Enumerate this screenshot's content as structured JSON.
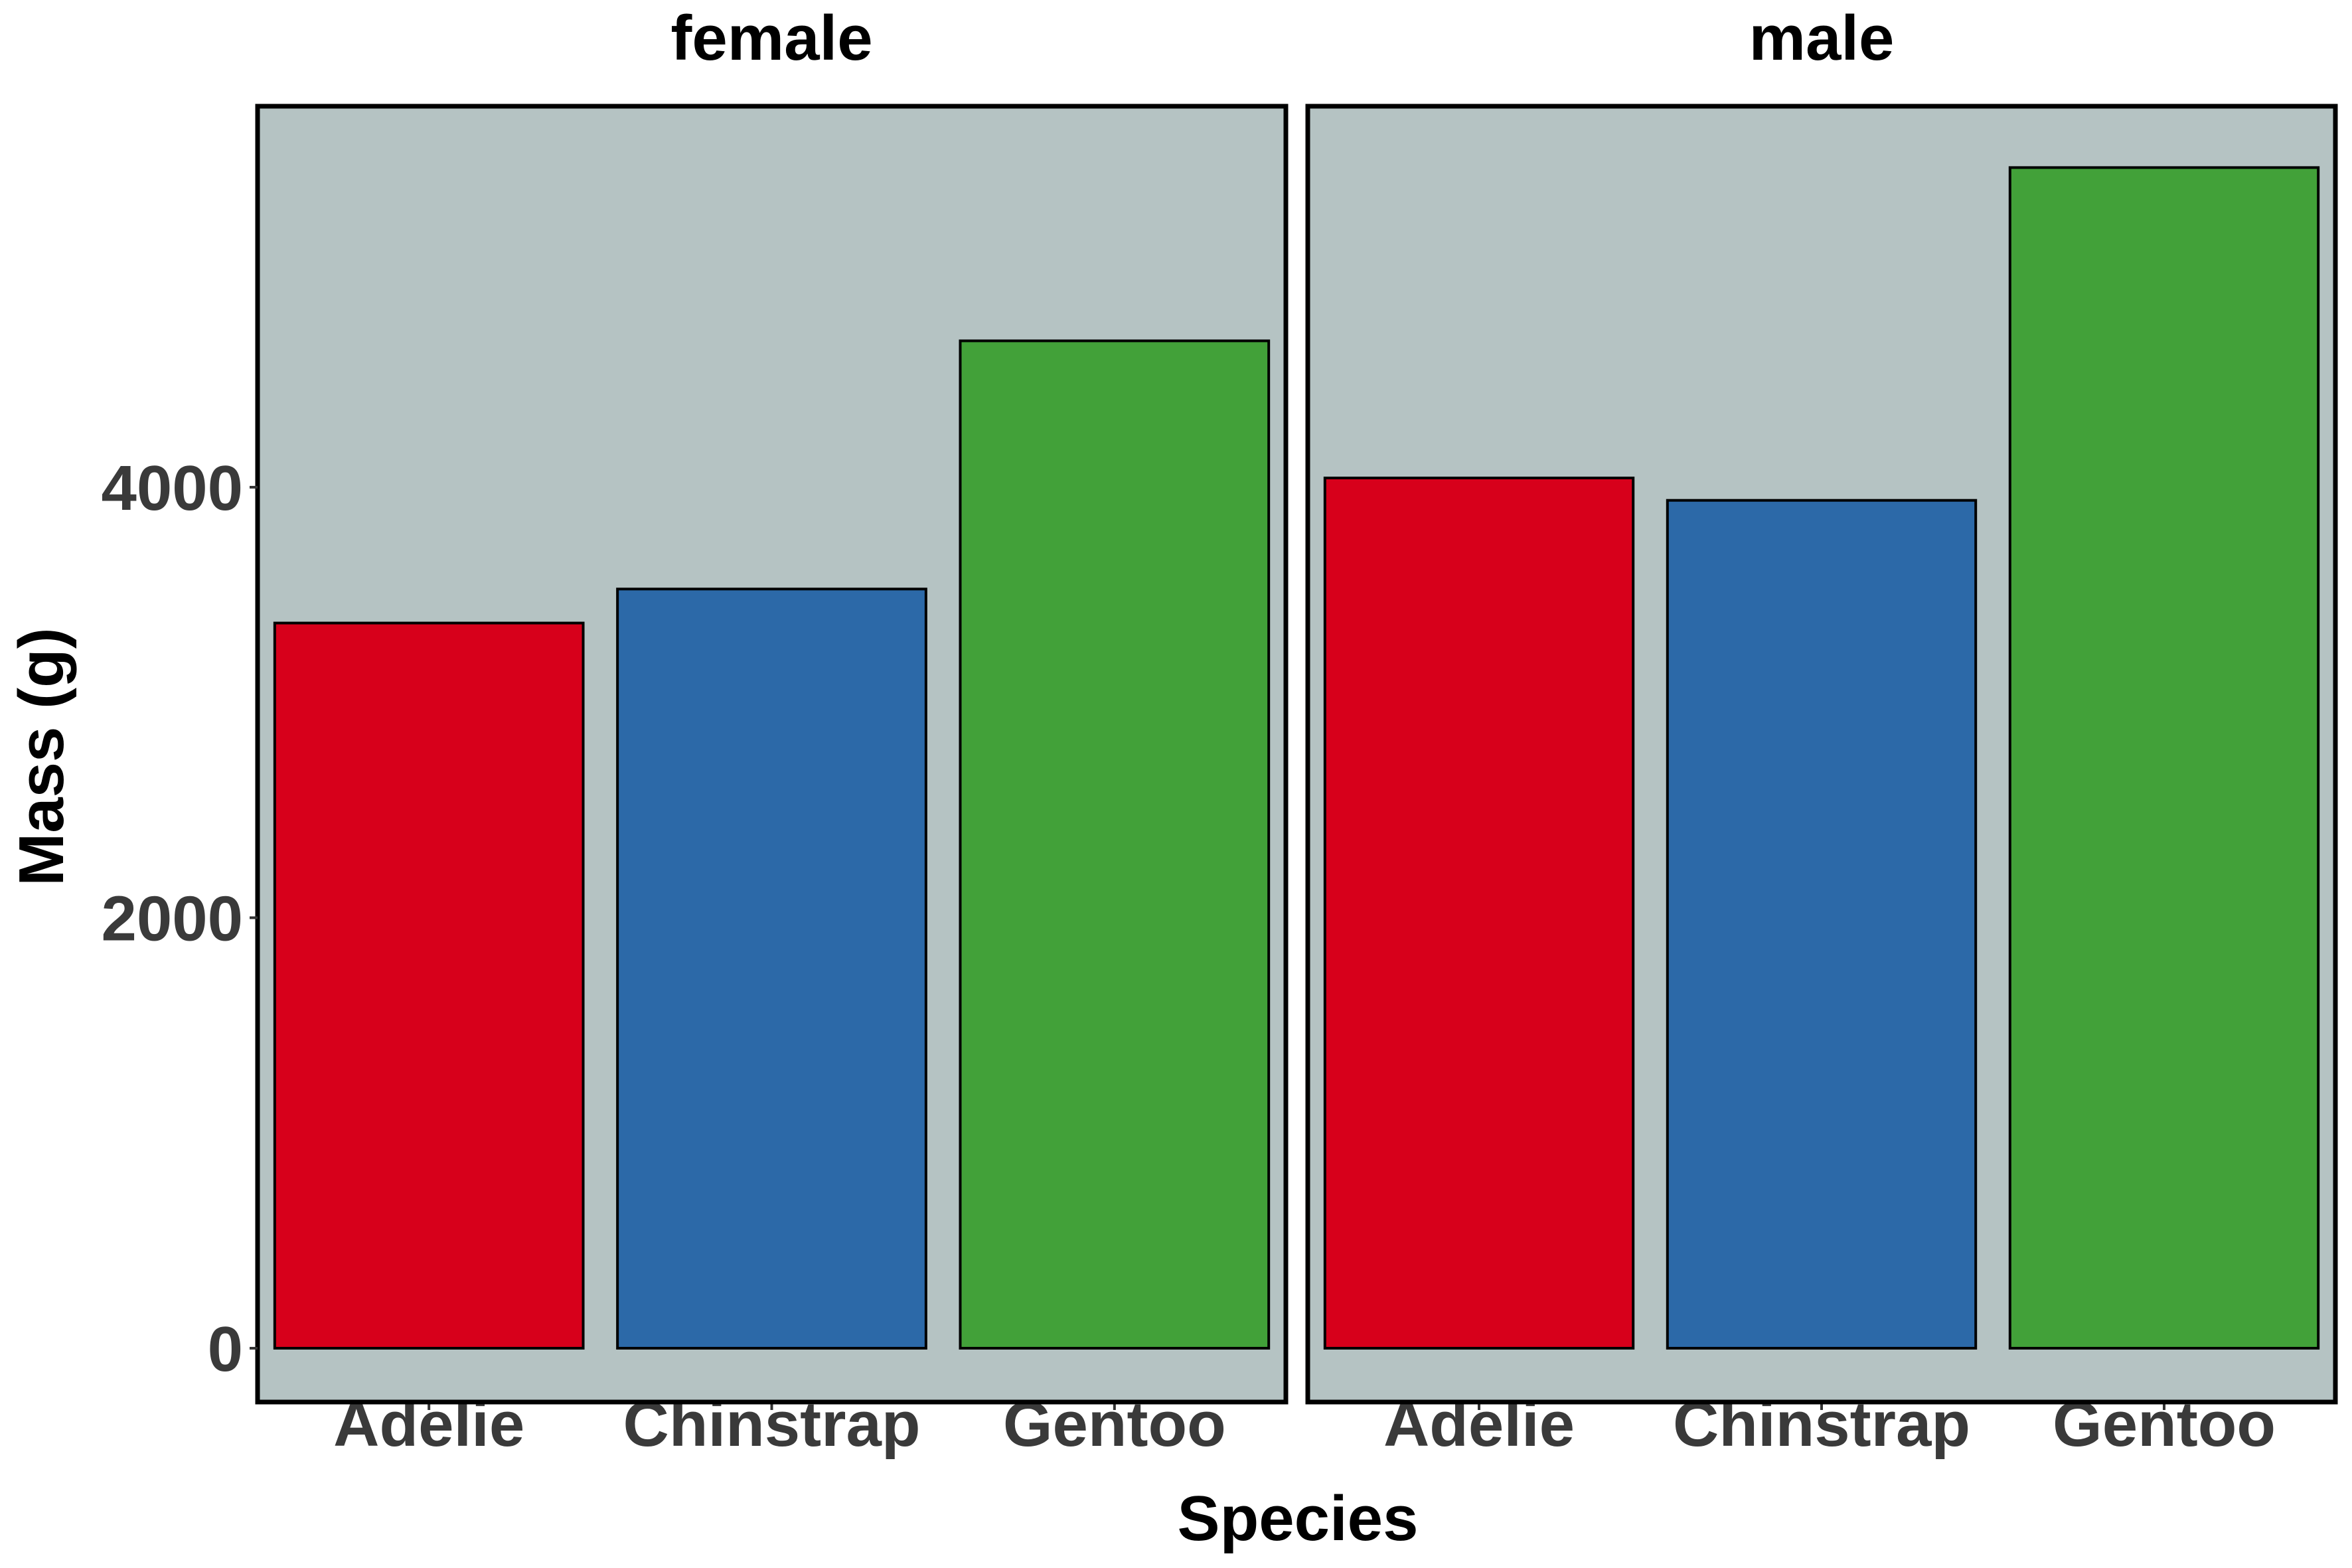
{
  "chart_data": {
    "type": "bar",
    "facet_by": "sex",
    "xlabel": "Species",
    "ylabel": "Mass (g)",
    "categories": [
      "Adelie",
      "Chinstrap",
      "Gentoo"
    ],
    "ylim": [
      -250,
      5770
    ],
    "yticks": [
      0,
      2000,
      4000
    ],
    "panel_background": "#b5c3c3",
    "bar_outline": "#000000",
    "category_colors": {
      "Adelie": "#d7001b",
      "Chinstrap": "#2c69a8",
      "Gentoo": "#42a139"
    },
    "panels": [
      {
        "label": "female",
        "values": {
          "Adelie": 3369,
          "Chinstrap": 3527,
          "Gentoo": 4680
        }
      },
      {
        "label": "male",
        "values": {
          "Adelie": 4043,
          "Chinstrap": 3939,
          "Gentoo": 5485
        }
      }
    ],
    "grid": false,
    "legend": "none"
  }
}
